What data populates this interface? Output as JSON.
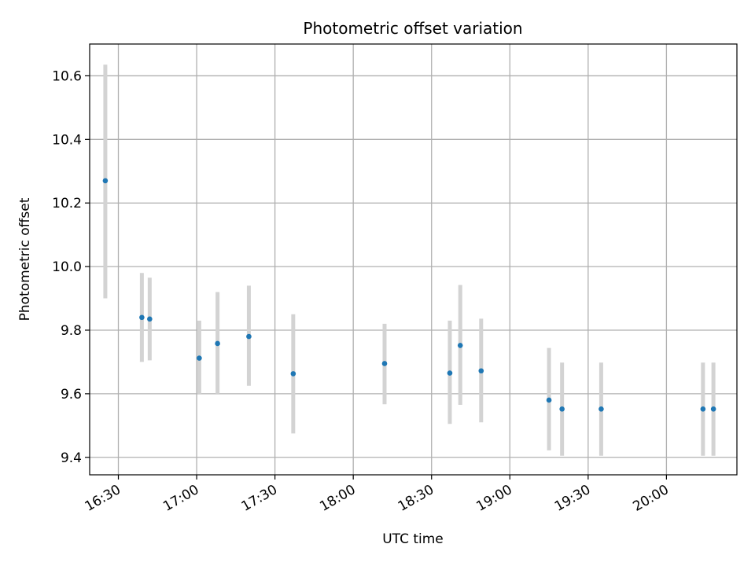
{
  "chart_data": {
    "type": "scatter",
    "title": "Photometric offset variation",
    "xlabel": "UTC time",
    "ylabel": "Photometric offset",
    "xlim": [
      "16:19",
      "20:27"
    ],
    "ylim": [
      9.345,
      10.7
    ],
    "x_ticks": [
      "16:30",
      "17:00",
      "17:30",
      "18:00",
      "18:30",
      "19:00",
      "19:30",
      "20:00"
    ],
    "y_ticks": [
      "9.4",
      "9.6",
      "9.8",
      "10.0",
      "10.2",
      "10.4",
      "10.6"
    ],
    "grid": true,
    "series": [
      {
        "points": [
          {
            "x": "16:25",
            "y": 10.27,
            "err_low": 9.9,
            "err_high": 10.635
          },
          {
            "x": "16:39",
            "y": 9.84,
            "err_low": 9.7,
            "err_high": 9.98
          },
          {
            "x": "16:42",
            "y": 9.835,
            "err_low": 9.705,
            "err_high": 9.965
          },
          {
            "x": "17:01",
            "y": 9.712,
            "err_low": 9.6,
            "err_high": 9.83
          },
          {
            "x": "17:08",
            "y": 9.758,
            "err_low": 9.6,
            "err_high": 9.92
          },
          {
            "x": "17:20",
            "y": 9.78,
            "err_low": 9.625,
            "err_high": 9.94
          },
          {
            "x": "17:37",
            "y": 9.663,
            "err_low": 9.475,
            "err_high": 9.85
          },
          {
            "x": "18:12",
            "y": 9.695,
            "err_low": 9.567,
            "err_high": 9.82
          },
          {
            "x": "18:37",
            "y": 9.665,
            "err_low": 9.505,
            "err_high": 9.83
          },
          {
            "x": "18:41",
            "y": 9.752,
            "err_low": 9.565,
            "err_high": 9.942
          },
          {
            "x": "18:49",
            "y": 9.672,
            "err_low": 9.51,
            "err_high": 9.836
          },
          {
            "x": "19:15",
            "y": 9.58,
            "err_low": 9.422,
            "err_high": 9.744
          },
          {
            "x": "19:20",
            "y": 9.552,
            "err_low": 9.405,
            "err_high": 9.698
          },
          {
            "x": "19:35",
            "y": 9.552,
            "err_low": 9.405,
            "err_high": 9.698
          },
          {
            "x": "20:14",
            "y": 9.552,
            "err_low": 9.405,
            "err_high": 9.698
          },
          {
            "x": "20:18",
            "y": 9.552,
            "err_low": 9.405,
            "err_high": 9.698
          }
        ]
      }
    ]
  },
  "colors": {
    "point": "#1f77b4",
    "errorbar": "#d3d3d3",
    "grid": "#b0b0b0",
    "axes": "#000000"
  }
}
